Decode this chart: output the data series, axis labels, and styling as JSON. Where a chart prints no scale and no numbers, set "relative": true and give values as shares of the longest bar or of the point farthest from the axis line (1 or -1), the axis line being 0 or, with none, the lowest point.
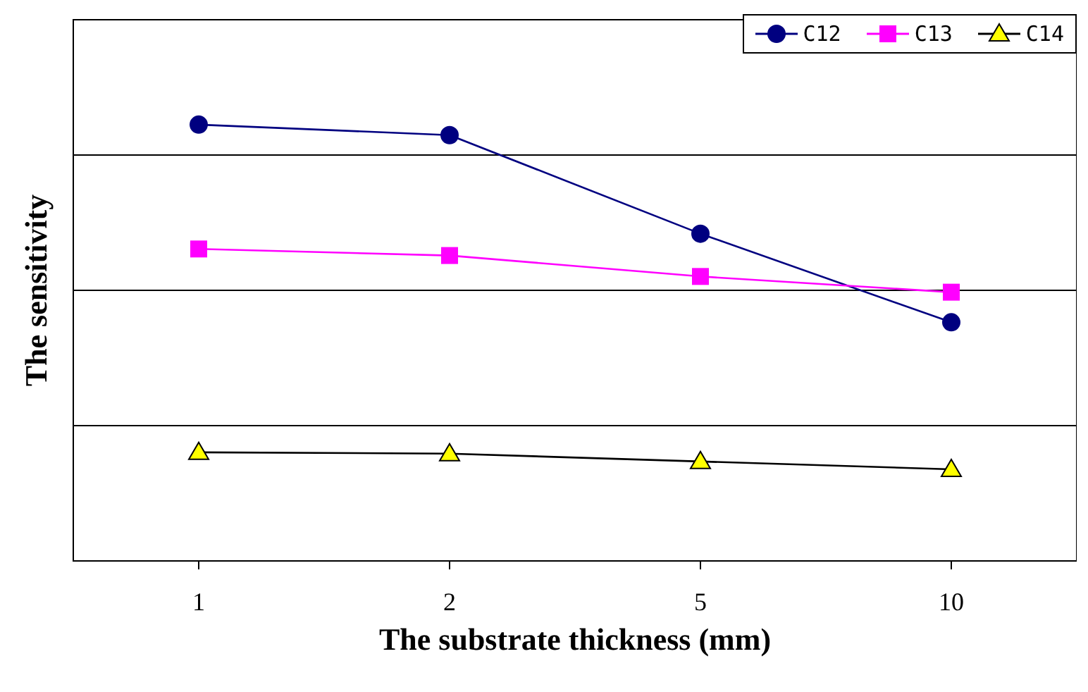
{
  "chart_data": {
    "type": "line",
    "xlabel": "The substrate thickness (mm)",
    "ylabel": "The sensitivity",
    "categories": [
      "1",
      "2",
      "5",
      "10"
    ],
    "relative": true,
    "grid": "y",
    "legend": "top right",
    "series": [
      {
        "name": "C12",
        "color": "#000080",
        "marker": "circle",
        "values": [
          1,
          0.976,
          0.75,
          0.547
        ]
      },
      {
        "name": "C13",
        "color": "#ff00ff",
        "marker": "square",
        "values": [
          0.715,
          0.7,
          0.652,
          0.616
        ]
      },
      {
        "name": "C14",
        "color": "#000000",
        "marker": "triangle",
        "values": [
          0.249,
          0.246,
          0.228,
          0.21
        ]
      }
    ]
  }
}
